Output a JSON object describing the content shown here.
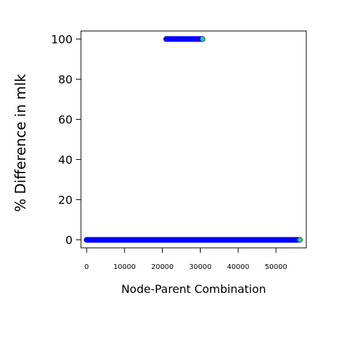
{
  "chart_data": {
    "type": "scatter",
    "title": "",
    "xlabel": "Node-Parent Combination",
    "ylabel": "% Difference in mlk",
    "xlim": [
      -1500,
      58000
    ],
    "ylim": [
      -4,
      104
    ],
    "x_ticks": [
      0,
      10000,
      20000,
      30000,
      40000,
      50000
    ],
    "x_tick_labels": [
      "0",
      "10000",
      "20000",
      "30000",
      "40000",
      "50000"
    ],
    "y_ticks": [
      0,
      20,
      40,
      60,
      80,
      100
    ],
    "y_tick_labels": [
      "0",
      "20",
      "40",
      "60",
      "80",
      "100"
    ],
    "grid": false,
    "legend": "none",
    "series": [
      {
        "color": "#0000ff",
        "segments": [
          {
            "x_start": 0,
            "x_end": 56000,
            "y": 0
          },
          {
            "x_start": 21000,
            "x_end": 30500,
            "y": 100
          }
        ]
      },
      {
        "color": "#2fd36a",
        "points": [
          {
            "x": 56300,
            "y": 0
          },
          {
            "x": 30600,
            "y": 100
          }
        ]
      }
    ]
  }
}
